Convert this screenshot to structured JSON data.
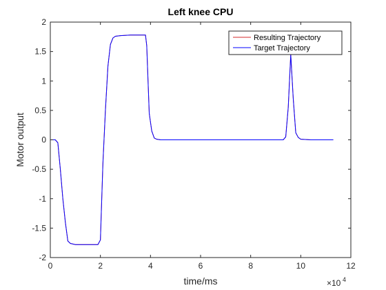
{
  "chart_data": {
    "type": "line",
    "title": "Left knee CPU",
    "xlabel": "time/ms",
    "ylabel": "Motor output",
    "x_exponent_label": "×10",
    "x_exponent_power": "4",
    "xlim": [
      0,
      120000
    ],
    "ylim": [
      -2,
      2
    ],
    "x_ticks": [
      0,
      20000,
      40000,
      60000,
      80000,
      100000,
      120000
    ],
    "x_tick_labels": [
      "0",
      "2",
      "4",
      "6",
      "8",
      "10",
      "12"
    ],
    "y_ticks": [
      2,
      1.5,
      1,
      0.5,
      0,
      -0.5,
      -1,
      -1.5,
      -2
    ],
    "y_tick_labels": [
      "2",
      "1.5",
      "1",
      "0.5",
      "0",
      "-0.5",
      "-1",
      "-1.5",
      "-2"
    ],
    "grid": false,
    "legend_position": "top-right",
    "series": [
      {
        "name": "Resulting Trajectory",
        "color": "#d62728",
        "x": [
          0,
          2000,
          3000,
          4000,
          5000,
          6000,
          7000,
          8000,
          10000,
          14000,
          19000,
          20000,
          21000,
          22000,
          23000,
          24000,
          25000,
          26000,
          28000,
          32000,
          38000,
          38500,
          39500,
          40500,
          41500,
          42500,
          44000,
          50000,
          60000,
          80000,
          93000,
          94000,
          95000,
          96000,
          97000,
          98000,
          99000,
          100000,
          104000,
          113000
        ],
        "y": [
          0,
          0,
          -0.05,
          -0.5,
          -1.0,
          -1.4,
          -1.72,
          -1.76,
          -1.78,
          -1.78,
          -1.78,
          -1.7,
          -0.4,
          0.5,
          1.25,
          1.62,
          1.73,
          1.76,
          1.77,
          1.78,
          1.78,
          1.6,
          0.45,
          0.15,
          0.03,
          0.01,
          0,
          0,
          0,
          0,
          0,
          0.05,
          0.55,
          1.45,
          0.7,
          0.12,
          0.04,
          0.01,
          0,
          0
        ]
      },
      {
        "name": "Target Trajectory",
        "color": "#0000ff",
        "x": [
          0,
          2000,
          3000,
          4000,
          5000,
          6000,
          7000,
          8000,
          10000,
          14000,
          19000,
          20000,
          21000,
          22000,
          23000,
          24000,
          25000,
          26000,
          28000,
          32000,
          38000,
          38500,
          39500,
          40500,
          41500,
          42500,
          44000,
          50000,
          60000,
          80000,
          93000,
          94000,
          95000,
          96000,
          97000,
          98000,
          99000,
          100000,
          104000,
          113000
        ],
        "y": [
          0,
          0,
          -0.05,
          -0.5,
          -1.0,
          -1.4,
          -1.72,
          -1.76,
          -1.78,
          -1.78,
          -1.78,
          -1.7,
          -0.4,
          0.5,
          1.25,
          1.62,
          1.73,
          1.76,
          1.77,
          1.78,
          1.78,
          1.6,
          0.45,
          0.15,
          0.03,
          0.01,
          0,
          0,
          0,
          0,
          0,
          0.05,
          0.55,
          1.45,
          0.7,
          0.12,
          0.04,
          0.01,
          0,
          0
        ]
      }
    ]
  }
}
